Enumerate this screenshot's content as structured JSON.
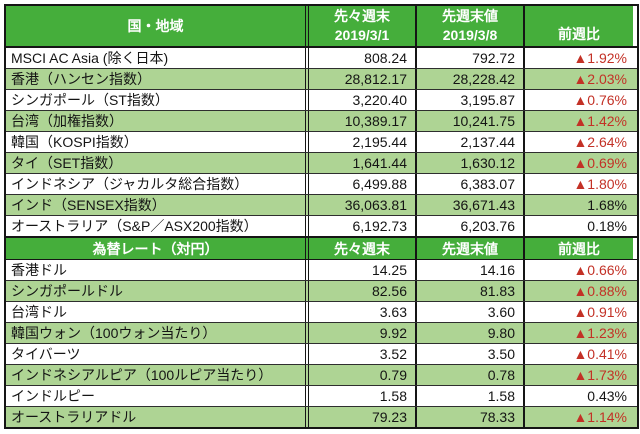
{
  "colors": {
    "header_green": "#45ae3b",
    "row_alt_green": "#aed494",
    "negative_red": "#c33126",
    "border_black": "#151515"
  },
  "sections": [
    {
      "id": "indices",
      "header": {
        "col1": "国・地域",
        "col2_line1": "先々週末",
        "col2_line2": "2019/3/1",
        "col3_line1": "先週末値",
        "col3_line2": "2019/3/8",
        "col4": "前週比"
      },
      "rows": [
        {
          "label": "MSCI AC Asia (除く日本)",
          "prev": "808.24",
          "last": "792.72",
          "change": "▲1.92%",
          "negative": true
        },
        {
          "label": "香港（ハンセン指数）",
          "prev": "28,812.17",
          "last": "28,228.42",
          "change": "▲2.03%",
          "negative": true
        },
        {
          "label": "シンガポール（ST指数）",
          "prev": "3,220.40",
          "last": "3,195.87",
          "change": "▲0.76%",
          "negative": true
        },
        {
          "label": "台湾（加権指数）",
          "prev": "10,389.17",
          "last": "10,241.75",
          "change": "▲1.42%",
          "negative": true
        },
        {
          "label": "韓国（KOSPI指数）",
          "prev": "2,195.44",
          "last": "2,137.44",
          "change": "▲2.64%",
          "negative": true
        },
        {
          "label": "タイ（SET指数）",
          "prev": "1,641.44",
          "last": "1,630.12",
          "change": "▲0.69%",
          "negative": true
        },
        {
          "label": "インドネシア（ジャカルタ総合指数）",
          "prev": "6,499.88",
          "last": "6,383.07",
          "change": "▲1.80%",
          "negative": true
        },
        {
          "label": "インド（SENSEX指数）",
          "prev": "36,063.81",
          "last": "36,671.43",
          "change": "1.68%",
          "negative": false
        },
        {
          "label": "オーストラリア（S&P／ASX200指数）",
          "prev": "6,192.73",
          "last": "6,203.76",
          "change": "0.18%",
          "negative": false
        }
      ]
    },
    {
      "id": "fx-rates",
      "header": {
        "col1": "為替レート（対円）",
        "col2": "先々週末",
        "col3": "先週末値",
        "col4": "前週比"
      },
      "rows": [
        {
          "label": "香港ドル",
          "prev": "14.25",
          "last": "14.16",
          "change": "▲0.66%",
          "negative": true
        },
        {
          "label": "シンガポールドル",
          "prev": "82.56",
          "last": "81.83",
          "change": "▲0.88%",
          "negative": true
        },
        {
          "label": "台湾ドル",
          "prev": "3.63",
          "last": "3.60",
          "change": "▲0.91%",
          "negative": true
        },
        {
          "label": "韓国ウォン（100ウォン当たり）",
          "prev": "9.92",
          "last": "9.80",
          "change": "▲1.23%",
          "negative": true
        },
        {
          "label": "タイバーツ",
          "prev": "3.52",
          "last": "3.50",
          "change": "▲0.41%",
          "negative": true
        },
        {
          "label": "インドネシアルピア（100ルピア当たり）",
          "prev": "0.79",
          "last": "0.78",
          "change": "▲1.73%",
          "negative": true
        },
        {
          "label": "インドルピー",
          "prev": "1.58",
          "last": "1.58",
          "change": "0.43%",
          "negative": false
        },
        {
          "label": "オーストラリアドル",
          "prev": "79.23",
          "last": "78.33",
          "change": "▲1.14%",
          "negative": true
        }
      ]
    }
  ],
  "chart_data": [
    {
      "type": "table",
      "title": "国・地域（株価指数）",
      "columns": [
        "国・地域",
        "先々週末 2019/3/1",
        "先週末値 2019/3/8",
        "前週比"
      ],
      "rows": [
        [
          "MSCI AC Asia (除く日本)",
          808.24,
          792.72,
          "▲1.92%"
        ],
        [
          "香港（ハンセン指数）",
          28812.17,
          28228.42,
          "▲2.03%"
        ],
        [
          "シンガポール（ST指数）",
          3220.4,
          3195.87,
          "▲0.76%"
        ],
        [
          "台湾（加権指数）",
          10389.17,
          10241.75,
          "▲1.42%"
        ],
        [
          "韓国（KOSPI指数）",
          2195.44,
          2137.44,
          "▲2.64%"
        ],
        [
          "タイ（SET指数）",
          1641.44,
          1630.12,
          "▲0.69%"
        ],
        [
          "インドネシア（ジャカルタ総合指数）",
          6499.88,
          6383.07,
          "▲1.80%"
        ],
        [
          "インド（SENSEX指数）",
          36063.81,
          36671.43,
          "1.68%"
        ],
        [
          "オーストラリア（S&P／ASX200指数）",
          6192.73,
          6203.76,
          "0.18%"
        ]
      ]
    },
    {
      "type": "table",
      "title": "為替レート（対円）",
      "columns": [
        "為替レート（対円）",
        "先々週末",
        "先週末値",
        "前週比"
      ],
      "rows": [
        [
          "香港ドル",
          14.25,
          14.16,
          "▲0.66%"
        ],
        [
          "シンガポールドル",
          82.56,
          81.83,
          "▲0.88%"
        ],
        [
          "台湾ドル",
          3.63,
          3.6,
          "▲0.91%"
        ],
        [
          "韓国ウォン（100ウォン当たり）",
          9.92,
          9.8,
          "▲1.23%"
        ],
        [
          "タイバーツ",
          3.52,
          3.5,
          "▲0.41%"
        ],
        [
          "インドネシアルピア（100ルピア当たり）",
          0.79,
          0.78,
          "▲1.73%"
        ],
        [
          "インドルピー",
          1.58,
          1.58,
          "0.43%"
        ],
        [
          "オーストラリアドル",
          79.23,
          78.33,
          "▲1.14%"
        ]
      ]
    }
  ]
}
